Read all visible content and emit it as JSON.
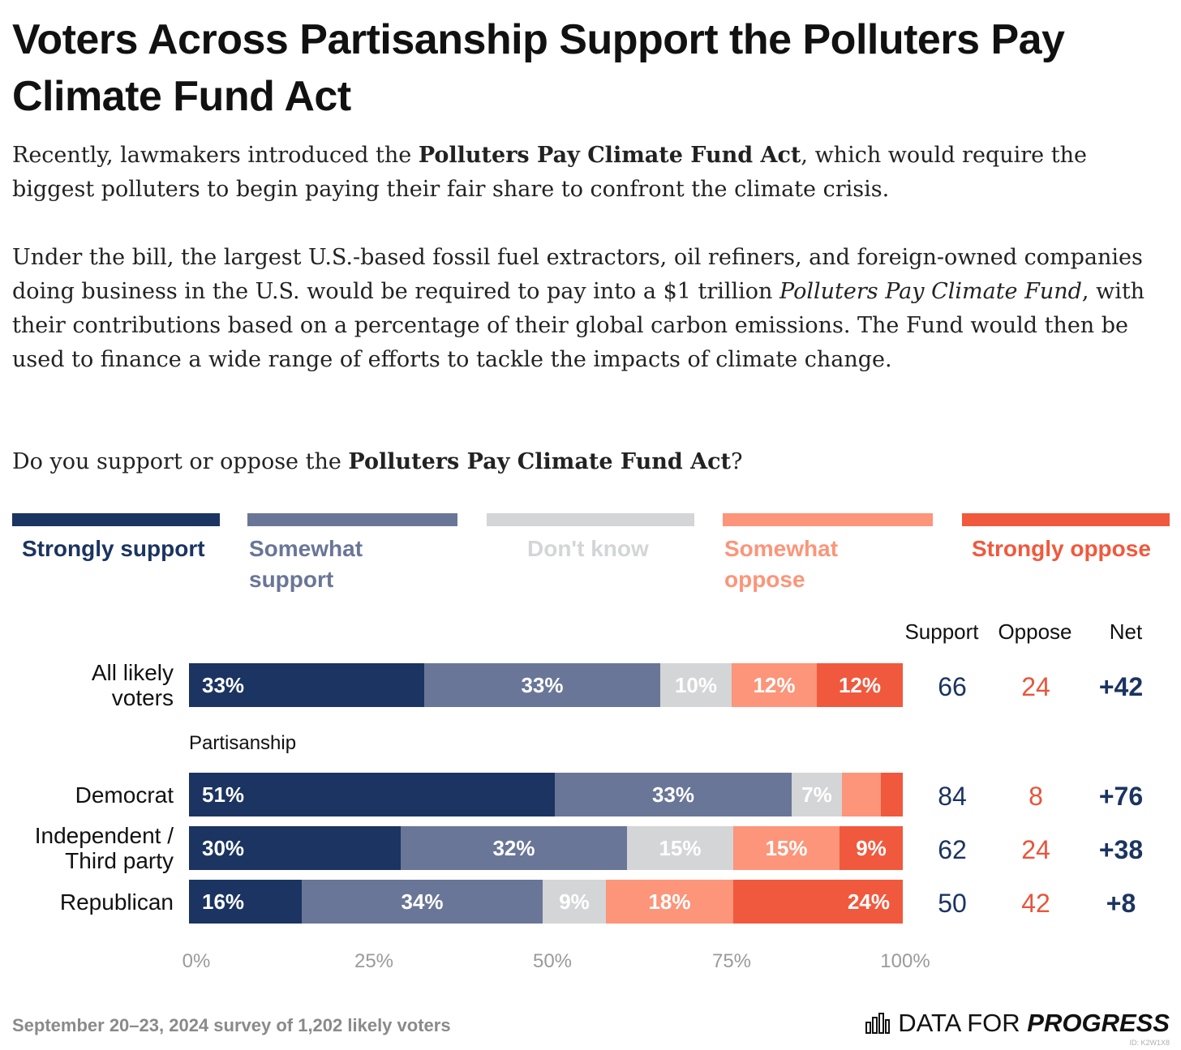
{
  "header": {
    "title": "Voters Across Partisanship Support the Polluters Pay Climate Fund Act",
    "p1_a": "Recently, lawmakers introduced the ",
    "p1_b": "Polluters Pay Climate Fund Act",
    "p1_c": ", which would require the biggest polluters to begin paying their fair share to confront the climate crisis.",
    "p2_a": "Under the bill, the largest U.S.-based fossil fuel extractors, oil refiners, and foreign-owned companies doing business in the U.S. would be required to pay into a $1 trillion ",
    "p2_b": "Polluters Pay Climate Fund",
    "p2_c": ", with their contributions based on a percentage of their global carbon emissions. The Fund would then be used to finance a wide range of efforts to tackle the impacts of climate change.",
    "q_a": "Do you support or oppose the ",
    "q_b": "Polluters Pay Climate Fund Act",
    "q_c": "?"
  },
  "colors": {
    "strongly_support": "#1b3461",
    "somewhat_support": "#6a7697",
    "dont_know": "#d4d5d7",
    "somewhat_oppose": "#fc9579",
    "strongly_oppose": "#f0593d",
    "support_text": "#1b3461",
    "oppose_text": "#e8553a"
  },
  "chart_data": {
    "type": "bar",
    "orientation": "horizontal",
    "stacked": true,
    "legend_position": "top",
    "xlim": [
      0,
      100
    ],
    "x_ticks": [
      "0%",
      "25%",
      "50%",
      "75%",
      "100%"
    ],
    "subgroup_label": "Partisanship",
    "columns": [
      "Support",
      "Oppose",
      "Net"
    ],
    "series": [
      {
        "name": "Strongly support",
        "values": [
          33,
          51,
          30,
          16
        ]
      },
      {
        "name": "Somewhat support",
        "values": [
          33,
          33,
          32,
          34
        ]
      },
      {
        "name": "Don't know",
        "values": [
          10,
          7,
          15,
          9
        ]
      },
      {
        "name": "Somewhat oppose",
        "values": [
          12,
          5.5,
          15,
          18
        ]
      },
      {
        "name": "Strongly oppose",
        "values": [
          12,
          3,
          9,
          24
        ]
      }
    ],
    "categories": [
      "All likely voters",
      "Democrat",
      "Independent / Third party",
      "Republican"
    ],
    "rows": [
      {
        "label_lines": [
          "All likely",
          "voters"
        ],
        "values": [
          33,
          33,
          10,
          12,
          12
        ],
        "labels": [
          "33%",
          "33%",
          "10%",
          "12%",
          "12%"
        ],
        "support": "66",
        "oppose": "24",
        "net": "+42"
      },
      {
        "label_lines": [
          "Democrat"
        ],
        "values": [
          51,
          33,
          7,
          5.5,
          3
        ],
        "labels": [
          "51%",
          "33%",
          "7%",
          "",
          ""
        ],
        "support": "84",
        "oppose": "8",
        "net": "+76"
      },
      {
        "label_lines": [
          "Independent /",
          "Third party"
        ],
        "values": [
          30,
          32,
          15,
          15,
          9
        ],
        "labels": [
          "30%",
          "32%",
          "15%",
          "15%",
          "9%"
        ],
        "support": "62",
        "oppose": "24",
        "net": "+38"
      },
      {
        "label_lines": [
          "Republican"
        ],
        "values": [
          16,
          34,
          9,
          18,
          24
        ],
        "labels": [
          "16%",
          "34%",
          "9%",
          "18%",
          "24%"
        ],
        "support": "50",
        "oppose": "42",
        "net": "+8"
      }
    ]
  },
  "footer": {
    "source": "September 20–23, 2024 survey of 1,202 likely voters",
    "logo_a": "DATA FOR ",
    "logo_b": "PROGRESS",
    "logo_icon": "bar-chart-icon",
    "tag": "ID: K2W1X8"
  }
}
